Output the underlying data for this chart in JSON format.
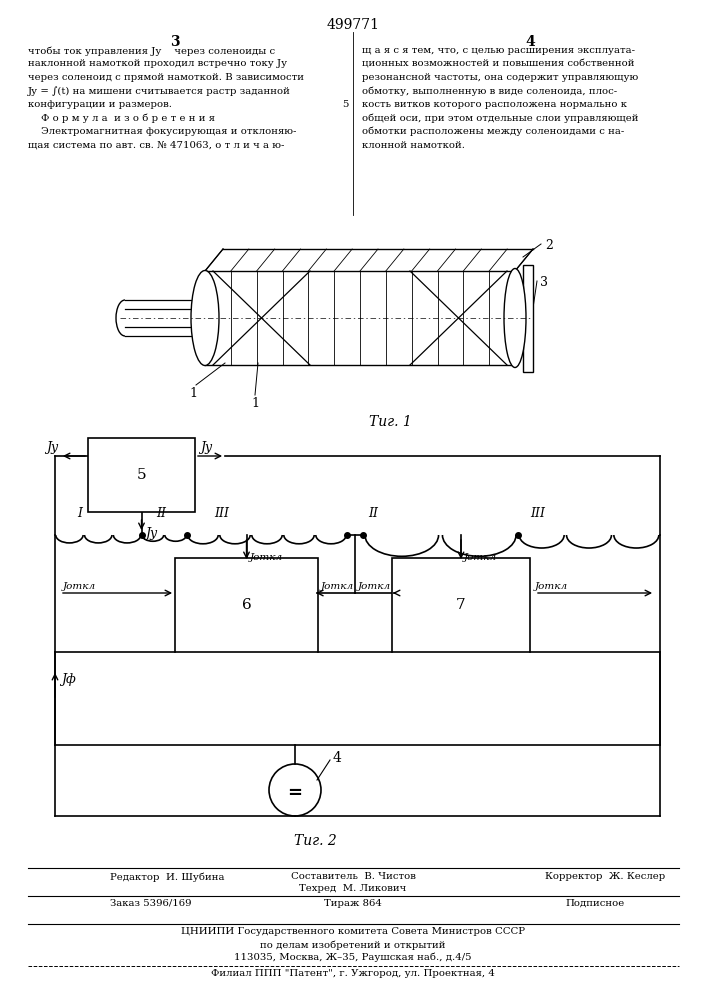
{
  "patent_number": "499771",
  "bg_color": "#ffffff",
  "text_color": "#000000",
  "fig1_caption": "Τиг. 1",
  "fig2_caption": "Τиг. 2",
  "jotkl": "Jоткл"
}
